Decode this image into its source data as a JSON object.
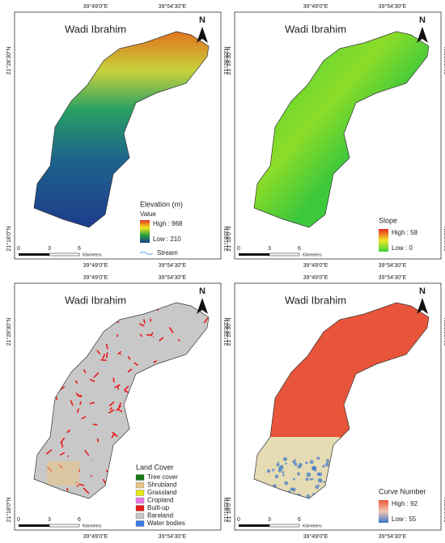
{
  "panels": [
    {
      "title": "Wadi Ibrahim",
      "north": "N",
      "lon_labels": [
        "39°49'0\"E",
        "39°54'30\"E"
      ],
      "lat_labels": [
        "21°28'30\"N",
        "21°18'0\"N"
      ],
      "scale": {
        "ticks": [
          0,
          3,
          6
        ],
        "unit": "Kilometers"
      },
      "legend": {
        "title": "Elevation (m)",
        "subtitle": "Value",
        "high": "High : 968",
        "low": "Low : 210",
        "ramp": [
          "#e0321e",
          "#f5e61e",
          "#28a03c",
          "#1e3c8c"
        ],
        "line": "Stream"
      }
    },
    {
      "title": "Wadi Ibrahim",
      "north": "N",
      "lon_labels": [
        "39°49'0\"E",
        "39°54'30\"E"
      ],
      "lat_labels": [
        "21°28'30\"N",
        "21°18'0\"N"
      ],
      "scale": {
        "ticks": [
          0,
          3,
          6
        ],
        "unit": "Kilometers"
      },
      "legend": {
        "title": "Slope",
        "high": "High : 58",
        "low": "Low : 0",
        "ramp": [
          "#e6281e",
          "#f0e628",
          "#3cd23c"
        ]
      }
    },
    {
      "title": "Wadi Ibrahim",
      "north": "N",
      "lon_labels": [
        "39°49'0\"E",
        "39°54'30\"E"
      ],
      "lat_labels": [
        "21°28'30\"N",
        "21°18'0\"N"
      ],
      "scale": {
        "ticks": [
          0,
          3,
          6
        ],
        "unit": "Kilometers"
      },
      "legend": {
        "title": "Land Cover",
        "items": [
          {
            "name": "Tree cover",
            "color": "#1a7a1a"
          },
          {
            "name": "Shrubland",
            "color": "#e8c48a"
          },
          {
            "name": "Grassland",
            "color": "#e6e61a"
          },
          {
            "name": "Cropland",
            "color": "#e87be8"
          },
          {
            "name": "Built-up",
            "color": "#e61a1a"
          },
          {
            "name": "Bareland",
            "color": "#c8c8c8"
          },
          {
            "name": "Water bodies",
            "color": "#3a7ae6"
          }
        ]
      }
    },
    {
      "title": "Wadi Ibrahim",
      "north": "N",
      "lon_labels": [
        "39°49'0\"E",
        "39°54'30\"E"
      ],
      "lat_labels": [
        "21°28'30\"N",
        "21°18'0\"N"
      ],
      "scale": {
        "ticks": [
          0,
          3,
          6
        ],
        "unit": "Kilometers"
      },
      "legend": {
        "title": "Curve Number",
        "high": "High : 92",
        "low": "Low : 55",
        "ramp": [
          "#e8553a",
          "#f0c8b4",
          "#3c78c8"
        ]
      }
    }
  ]
}
